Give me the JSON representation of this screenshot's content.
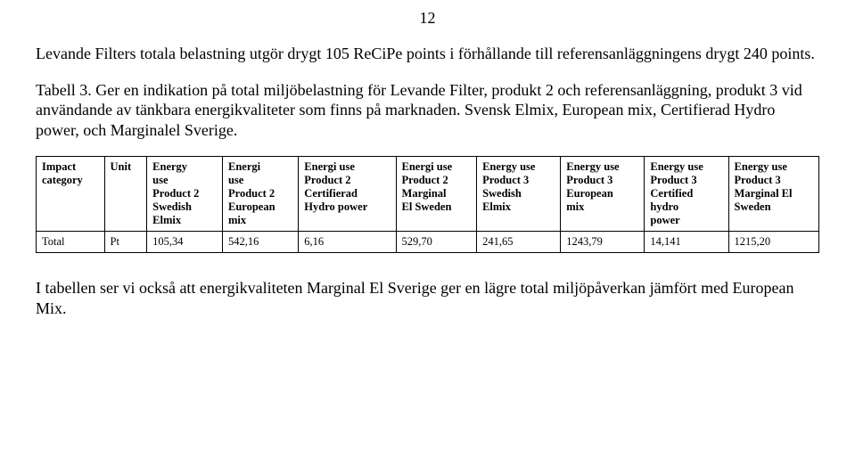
{
  "page_number": "12",
  "intro_paragraph": "Levande Filters totala belastning utgör drygt 105 ReCiPe points i förhållande till referensanläggningens drygt 240 points.",
  "table_caption": "Tabell 3. Ger en indikation på total miljöbelastning för Levande Filter, produkt 2 och referensanläggning, produkt 3 vid användande av tänkbara energikvaliteter som finns på marknaden. Svensk Elmix, European mix, Certifierad Hydro power, och Marginalel Sverige.",
  "table": {
    "columns": [
      [
        "Impact",
        "category"
      ],
      [
        "Unit"
      ],
      [
        "Energy",
        "use",
        "Product 2",
        "Swedish",
        "Elmix"
      ],
      [
        "Energi",
        "use",
        "Product 2",
        "European",
        "mix"
      ],
      [
        "Energi use",
        "Product 2",
        "Certifierad",
        "Hydro power"
      ],
      [
        "Energi use",
        "Product 2",
        "Marginal",
        "El Sweden"
      ],
      [
        "Energy use",
        "Product 3",
        "Swedish",
        "Elmix"
      ],
      [
        "Energy use",
        "Product 3",
        "European",
        "mix"
      ],
      [
        "Energy use",
        "Product 3",
        "Certified",
        "hydro",
        "power"
      ],
      [
        "Energy use",
        "Product 3",
        "Marginal El",
        "Sweden"
      ]
    ],
    "rows": [
      [
        "Total",
        "Pt",
        "105,34",
        "542,16",
        "6,16",
        "529,70",
        "241,65",
        "1243,79",
        "14,141",
        "1215,20"
      ]
    ],
    "header_fontsize": 12.5,
    "body_fontsize": 12.5,
    "border_color": "#000000",
    "background_color": "#ffffff"
  },
  "closing_paragraph": "I tabellen ser vi också att energikvaliteten Marginal El Sverige ger en lägre total miljöpåverkan jämfört med European Mix."
}
